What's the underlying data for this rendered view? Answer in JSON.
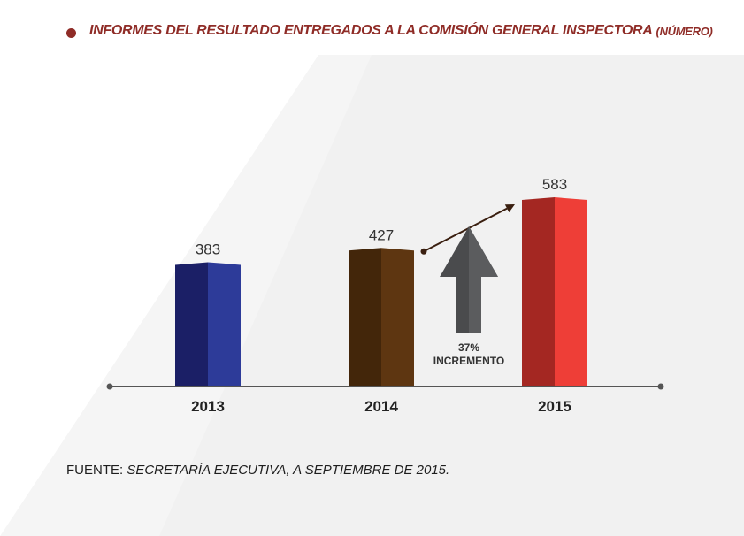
{
  "header": {
    "title": "INFORMES DEL RESULTADO ENTREGADOS A LA COMISIÓN GENERAL INSPECTORA",
    "unit": "(NÚMERO)"
  },
  "annotation": {
    "percent": "37%",
    "label": "INCREMENTO"
  },
  "source": {
    "label": "FUENTE:",
    "text": "SECRETARÍA EJECUTIVA, A SEPTIEMBRE DE 2015."
  },
  "colors": {
    "title": "#8f2c27",
    "bar_2013": [
      "#1b1f66",
      "#2d3b99"
    ],
    "bar_2014": [
      "#43260a",
      "#5e3611"
    ],
    "bar_2015": [
      "#a42722",
      "#ee3e37"
    ],
    "axis": "#555555",
    "arrow": "#4a4b4d"
  },
  "chart_data": {
    "type": "bar",
    "title": "INFORMES DEL RESULTADO ENTREGADOS A LA COMISIÓN GENERAL INSPECTORA (NÚMERO)",
    "categories": [
      "2013",
      "2014",
      "2015"
    ],
    "values": [
      383,
      427,
      583
    ],
    "xlabel": "",
    "ylabel": "",
    "grid": false,
    "legend": "none",
    "annotation": "37% INCREMENTO"
  }
}
